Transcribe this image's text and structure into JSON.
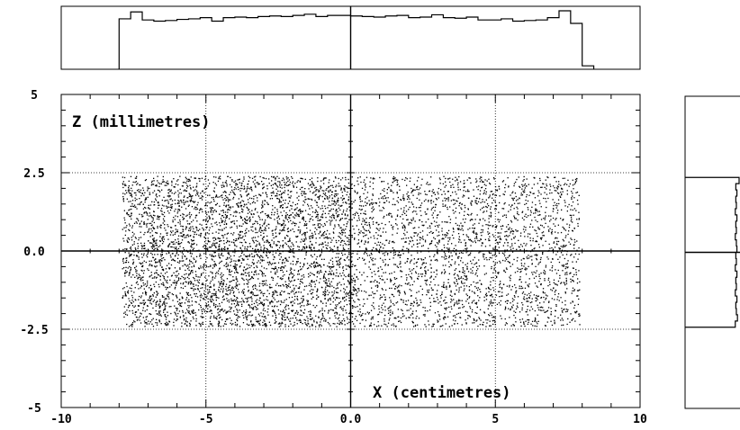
{
  "chart_data": {
    "type": "scatter",
    "main": {
      "xlabel": "X (centimetres)",
      "ylabel": "Z (millimetres)",
      "xlim": [
        -10,
        10
      ],
      "ylim": [
        -5,
        5
      ],
      "x_ticks": [
        -10,
        -5,
        0,
        5,
        10
      ],
      "x_tick_labels": [
        "-10",
        "-5",
        "0.0",
        "5",
        "10"
      ],
      "y_ticks": [
        5,
        2.5,
        0,
        -2.5,
        -5
      ],
      "y_tick_labels": [
        "5",
        "2.5",
        "0.0",
        "-2.5",
        "-5"
      ],
      "grid": true,
      "point_region": {
        "x_range": [
          -7.9,
          7.9
        ],
        "y_range": [
          -2.4,
          2.4
        ]
      },
      "density_left": 1.0,
      "density_right": 0.65,
      "point_count": 7000
    },
    "top_histogram": {
      "type": "histogram",
      "axis": "x",
      "xlim": [
        -10,
        10
      ],
      "bin_edges": [
        -8.0,
        -7.6,
        -7.2,
        -6.8,
        -6.4,
        -6.0,
        -5.6,
        -5.2,
        -4.8,
        -4.4,
        -4.0,
        -3.6,
        -3.2,
        -2.8,
        -2.4,
        -2.0,
        -1.6,
        -1.2,
        -0.8,
        -0.4,
        0.0,
        0.4,
        0.8,
        1.2,
        1.6,
        2.0,
        2.4,
        2.8,
        3.2,
        3.6,
        4.0,
        4.4,
        4.8,
        5.2,
        5.6,
        6.0,
        6.4,
        6.8,
        7.2,
        7.6,
        8.0,
        8.4
      ],
      "counts": [
        88,
        100,
        86,
        84,
        85,
        87,
        88,
        90,
        84,
        90,
        91,
        90,
        92,
        93,
        92,
        94,
        96,
        92,
        94,
        94,
        93,
        92,
        91,
        93,
        94,
        90,
        91,
        95,
        90,
        89,
        91,
        86,
        86,
        88,
        84,
        85,
        86,
        90,
        102,
        80,
        6
      ]
    },
    "right_histogram": {
      "type": "histogram",
      "axis": "z",
      "ylim": [
        -5,
        5
      ],
      "bin_edges": [
        -2.4,
        -2.2,
        -2.0,
        -1.8,
        -1.6,
        -1.4,
        -1.2,
        -1.0,
        -0.8,
        -0.6,
        -0.4,
        -0.2,
        0.0,
        0.2,
        0.4,
        0.6,
        0.8,
        1.0,
        1.2,
        1.4,
        1.6,
        1.8,
        2.0,
        2.2,
        2.4
      ],
      "counts": [
        92,
        96,
        94,
        93,
        95,
        92,
        94,
        93,
        95,
        92,
        94,
        93,
        95,
        94,
        92,
        94,
        93,
        95,
        92,
        94,
        93,
        95,
        93,
        99
      ]
    }
  }
}
